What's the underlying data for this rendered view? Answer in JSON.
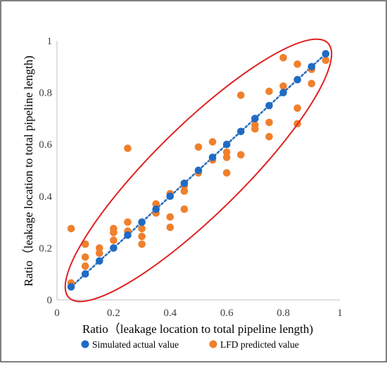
{
  "colors": {
    "actual": "#1f6bc4",
    "predicted": "#f0802c",
    "ellipse": "#e02020",
    "trendline": "#2a6fc0",
    "axis": "#bfbfbf",
    "frame": "#000000"
  },
  "chart_data": {
    "type": "scatter",
    "xlabel": "Ratio（leakage location to total pipeline length)",
    "ylabel": "Ratio（leakage location to total pipeline length)",
    "xlim": [
      0,
      1
    ],
    "ylim": [
      0,
      1
    ],
    "x_ticks": [
      0,
      0.2,
      0.4,
      0.6,
      0.8,
      1
    ],
    "y_ticks": [
      0,
      0.2,
      0.4,
      0.6,
      0.8,
      1
    ],
    "x_tick_labels": [
      "0",
      "0.2",
      "0.4",
      "0.6",
      "0.8",
      "1"
    ],
    "y_tick_labels": [
      "0",
      "0.2",
      "0.4",
      "0.6",
      "0.8",
      "1"
    ],
    "grid": false,
    "legend_position": "bottom",
    "trendline": "dotted linear fit through simulated actual values",
    "annotation": "red ellipse enclosing all points",
    "series": [
      {
        "name": "Simulated actual value",
        "color": "#1f6bc4",
        "points": [
          [
            0.05,
            0.05
          ],
          [
            0.1,
            0.1
          ],
          [
            0.15,
            0.15
          ],
          [
            0.2,
            0.2
          ],
          [
            0.25,
            0.25
          ],
          [
            0.3,
            0.3
          ],
          [
            0.35,
            0.35
          ],
          [
            0.4,
            0.4
          ],
          [
            0.45,
            0.45
          ],
          [
            0.5,
            0.5
          ],
          [
            0.55,
            0.55
          ],
          [
            0.6,
            0.6
          ],
          [
            0.65,
            0.65
          ],
          [
            0.7,
            0.7
          ],
          [
            0.75,
            0.75
          ],
          [
            0.8,
            0.8
          ],
          [
            0.85,
            0.85
          ],
          [
            0.9,
            0.9
          ],
          [
            0.95,
            0.95
          ]
        ]
      },
      {
        "name": "LFD predicted value",
        "color": "#f0802c",
        "points": [
          [
            0.05,
            0.275
          ],
          [
            0.05,
            0.065
          ],
          [
            0.1,
            0.215
          ],
          [
            0.1,
            0.165
          ],
          [
            0.1,
            0.13
          ],
          [
            0.15,
            0.2
          ],
          [
            0.15,
            0.18
          ],
          [
            0.2,
            0.275
          ],
          [
            0.2,
            0.26
          ],
          [
            0.2,
            0.23
          ],
          [
            0.25,
            0.585
          ],
          [
            0.25,
            0.3
          ],
          [
            0.25,
            0.265
          ],
          [
            0.3,
            0.275
          ],
          [
            0.3,
            0.245
          ],
          [
            0.3,
            0.215
          ],
          [
            0.35,
            0.37
          ],
          [
            0.35,
            0.335
          ],
          [
            0.4,
            0.41
          ],
          [
            0.4,
            0.32
          ],
          [
            0.4,
            0.28
          ],
          [
            0.45,
            0.44
          ],
          [
            0.45,
            0.42
          ],
          [
            0.45,
            0.35
          ],
          [
            0.5,
            0.59
          ],
          [
            0.5,
            0.49
          ],
          [
            0.55,
            0.61
          ],
          [
            0.55,
            0.54
          ],
          [
            0.6,
            0.57
          ],
          [
            0.6,
            0.55
          ],
          [
            0.6,
            0.49
          ],
          [
            0.65,
            0.79
          ],
          [
            0.65,
            0.56
          ],
          [
            0.7,
            0.675
          ],
          [
            0.7,
            0.66
          ],
          [
            0.75,
            0.805
          ],
          [
            0.75,
            0.685
          ],
          [
            0.75,
            0.63
          ],
          [
            0.8,
            0.935
          ],
          [
            0.8,
            0.825
          ],
          [
            0.85,
            0.91
          ],
          [
            0.85,
            0.74
          ],
          [
            0.85,
            0.68
          ],
          [
            0.9,
            0.89
          ],
          [
            0.9,
            0.835
          ],
          [
            0.95,
            0.925
          ]
        ]
      }
    ]
  }
}
